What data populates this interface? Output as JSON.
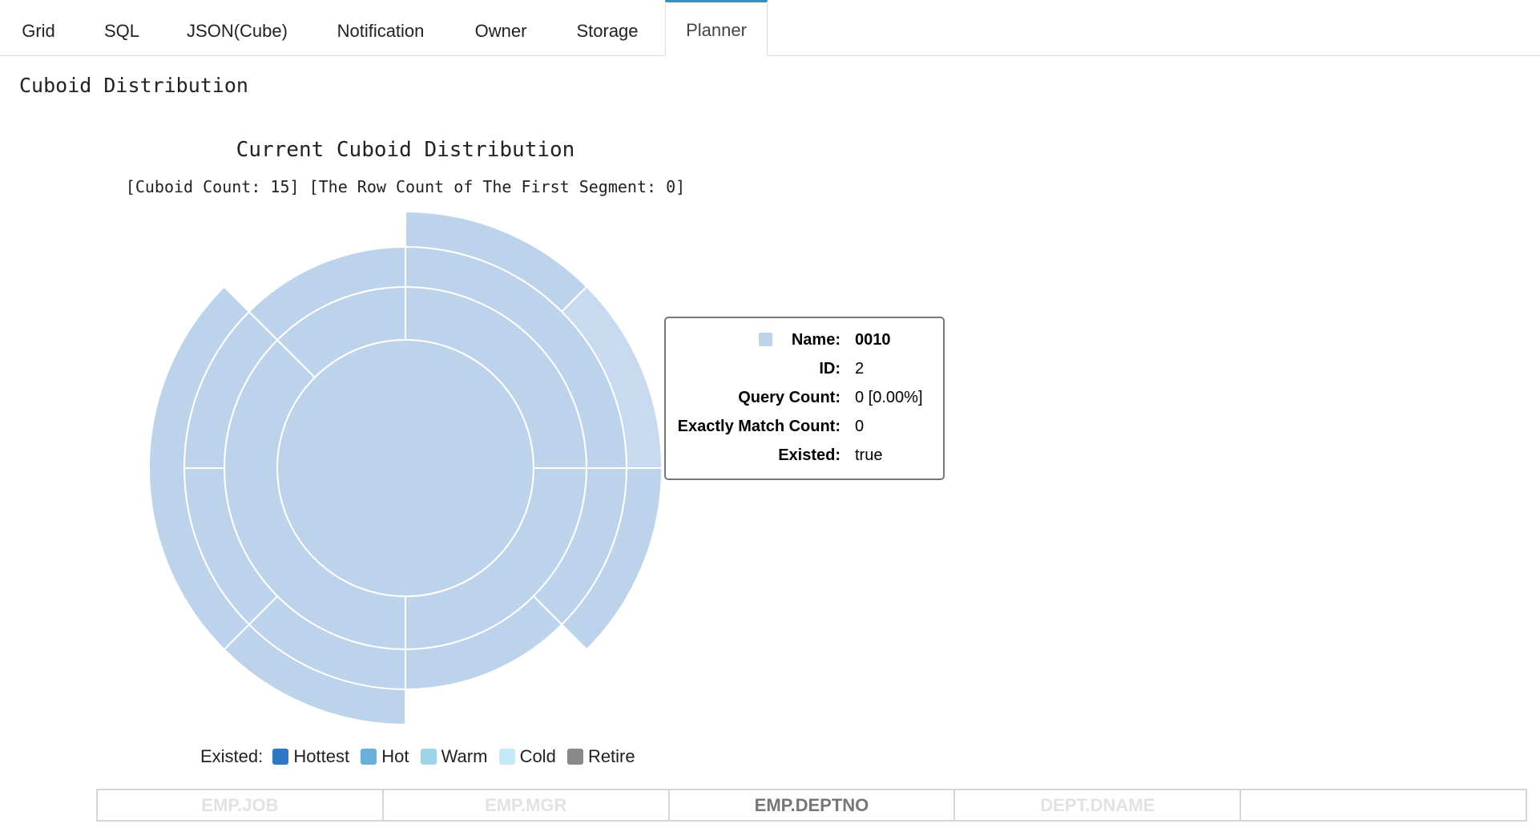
{
  "tabs": [
    {
      "label": "Grid",
      "active": false
    },
    {
      "label": "SQL",
      "active": false
    },
    {
      "label": "JSON(Cube)",
      "active": false
    },
    {
      "label": "Notification",
      "active": false
    },
    {
      "label": "Owner",
      "active": false
    },
    {
      "label": "Storage",
      "active": false
    },
    {
      "label": "Planner",
      "active": true
    }
  ],
  "section_title": "Cuboid Distribution",
  "chart": {
    "title": "Current Cuboid Distribution",
    "subtitle": "[Cuboid Count: 15] [The Row Count of The First Segment: 0]"
  },
  "chart_data": {
    "type": "sunburst",
    "title": "Current Cuboid Distribution",
    "subtitle": "[Cuboid Count: 15] [The Row Count of The First Segment: 0]",
    "base_color": "#bcd3eb",
    "highlight_color": "#c8daef",
    "levels": [
      {
        "level": 0,
        "segments": [
          {
            "start_deg": 0,
            "end_deg": 360
          }
        ]
      },
      {
        "level": 1,
        "segments": [
          {
            "start_deg": 0,
            "end_deg": 90
          },
          {
            "start_deg": 90,
            "end_deg": 180
          },
          {
            "start_deg": 180,
            "end_deg": 315
          },
          {
            "start_deg": 315,
            "end_deg": 360
          }
        ]
      },
      {
        "level": 2,
        "segments": [
          {
            "start_deg": 0,
            "end_deg": 90
          },
          {
            "start_deg": 90,
            "end_deg": 135
          },
          {
            "start_deg": 135,
            "end_deg": 180
          },
          {
            "start_deg": 180,
            "end_deg": 225
          },
          {
            "start_deg": 225,
            "end_deg": 270
          },
          {
            "start_deg": 270,
            "end_deg": 315
          },
          {
            "start_deg": 315,
            "end_deg": 360
          }
        ]
      },
      {
        "level": 3,
        "segments": [
          {
            "start_deg": 0,
            "end_deg": 45
          },
          {
            "start_deg": 45,
            "end_deg": 90,
            "highlighted": true
          },
          {
            "start_deg": 90,
            "end_deg": 135
          },
          {
            "start_deg": 180,
            "end_deg": 225
          },
          {
            "start_deg": 225,
            "end_deg": 315
          }
        ]
      }
    ]
  },
  "tooltip": {
    "swatch_color": "#bcd3eb",
    "rows": [
      {
        "key": "Name:",
        "value": "0010",
        "bold_value": true
      },
      {
        "key": "ID:",
        "value": "2",
        "bold_value": false
      },
      {
        "key": "Query Count:",
        "value": "0 [0.00%]",
        "bold_value": false
      },
      {
        "key": "Exactly Match Count:",
        "value": "0",
        "bold_value": false
      },
      {
        "key": "Existed:",
        "value": "true",
        "bold_value": false
      }
    ]
  },
  "legend": {
    "label": "Existed:",
    "items": [
      {
        "name": "Hottest",
        "color": "#2f77c6"
      },
      {
        "name": "Hot",
        "color": "#6aaedb"
      },
      {
        "name": "Warm",
        "color": "#9cd4ea"
      },
      {
        "name": "Cold",
        "color": "#c7e8f7"
      },
      {
        "name": "Retire",
        "color": "#888888"
      }
    ]
  },
  "dimensions": [
    {
      "label": "EMP.JOB",
      "selected": false
    },
    {
      "label": "EMP.MGR",
      "selected": false
    },
    {
      "label": "EMP.DEPTNO",
      "selected": true
    },
    {
      "label": "DEPT.DNAME",
      "selected": false
    },
    {
      "label": "",
      "selected": false
    }
  ]
}
